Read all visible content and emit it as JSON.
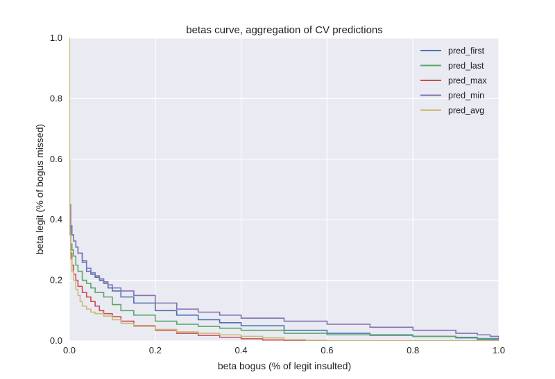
{
  "chart_data": {
    "type": "line",
    "title": "betas curve, aggregation of CV predictions",
    "xlabel": "beta bogus (% of legit insulted)",
    "ylabel": "beta legit (% of bogus missed)",
    "xlim": [
      0.0,
      1.0
    ],
    "ylim": [
      0.0,
      1.0
    ],
    "x_ticks": [
      "0.0",
      "0.2",
      "0.4",
      "0.6",
      "0.8",
      "1.0"
    ],
    "y_ticks": [
      "0.0",
      "0.2",
      "0.4",
      "0.6",
      "0.8",
      "1.0"
    ],
    "grid": true,
    "legend_position": "top-right",
    "background_color": "#eaeaf2",
    "series": [
      {
        "name": "pred_first",
        "color": "#4c72b0",
        "x": [
          0.0,
          0.003,
          0.006,
          0.01,
          0.015,
          0.02,
          0.03,
          0.04,
          0.05,
          0.06,
          0.07,
          0.08,
          0.09,
          0.1,
          0.12,
          0.15,
          0.2,
          0.25,
          0.3,
          0.35,
          0.4,
          0.5,
          0.6,
          0.7,
          0.8,
          0.9,
          0.95,
          1.0
        ],
        "y": [
          0.43,
          0.37,
          0.35,
          0.33,
          0.31,
          0.29,
          0.26,
          0.23,
          0.22,
          0.21,
          0.2,
          0.19,
          0.175,
          0.165,
          0.145,
          0.125,
          0.1,
          0.085,
          0.07,
          0.06,
          0.05,
          0.035,
          0.025,
          0.02,
          0.015,
          0.01,
          0.005,
          0.0
        ]
      },
      {
        "name": "pred_last",
        "color": "#55a868",
        "x": [
          0.0,
          0.003,
          0.006,
          0.01,
          0.015,
          0.02,
          0.03,
          0.04,
          0.05,
          0.06,
          0.08,
          0.1,
          0.12,
          0.15,
          0.2,
          0.25,
          0.3,
          0.35,
          0.4,
          0.5,
          0.6,
          0.7,
          0.8,
          0.9,
          0.95,
          1.0
        ],
        "y": [
          0.37,
          0.32,
          0.3,
          0.28,
          0.25,
          0.23,
          0.2,
          0.19,
          0.175,
          0.16,
          0.145,
          0.12,
          0.1,
          0.085,
          0.065,
          0.055,
          0.048,
          0.042,
          0.035,
          0.025,
          0.02,
          0.018,
          0.015,
          0.012,
          0.008,
          0.0
        ]
      },
      {
        "name": "pred_max",
        "color": "#c44e52",
        "x": [
          0.0,
          0.003,
          0.006,
          0.01,
          0.015,
          0.02,
          0.03,
          0.04,
          0.05,
          0.06,
          0.07,
          0.08,
          0.1,
          0.12,
          0.15,
          0.2,
          0.25,
          0.3,
          0.35,
          0.4,
          0.45,
          0.5,
          1.0
        ],
        "y": [
          0.35,
          0.29,
          0.25,
          0.22,
          0.2,
          0.18,
          0.16,
          0.145,
          0.13,
          0.115,
          0.1,
          0.09,
          0.08,
          0.065,
          0.05,
          0.035,
          0.025,
          0.018,
          0.012,
          0.007,
          0.003,
          0.0,
          0.0
        ]
      },
      {
        "name": "pred_min",
        "color": "#8172b2",
        "x": [
          0.0,
          0.003,
          0.006,
          0.01,
          0.015,
          0.02,
          0.03,
          0.04,
          0.05,
          0.06,
          0.07,
          0.08,
          0.09,
          0.1,
          0.12,
          0.15,
          0.2,
          0.25,
          0.3,
          0.35,
          0.4,
          0.5,
          0.6,
          0.7,
          0.8,
          0.9,
          0.95,
          0.98,
          1.0
        ],
        "y": [
          0.45,
          0.38,
          0.35,
          0.33,
          0.31,
          0.29,
          0.265,
          0.24,
          0.225,
          0.215,
          0.205,
          0.195,
          0.185,
          0.175,
          0.165,
          0.15,
          0.125,
          0.105,
          0.095,
          0.085,
          0.075,
          0.065,
          0.055,
          0.045,
          0.035,
          0.025,
          0.02,
          0.015,
          0.0
        ]
      },
      {
        "name": "pred_avg",
        "color": "#ccb974",
        "x": [
          0.0,
          0.0005,
          0.001,
          0.003,
          0.006,
          0.01,
          0.015,
          0.02,
          0.025,
          0.03,
          0.04,
          0.05,
          0.06,
          0.08,
          0.1,
          0.12,
          0.15,
          0.2,
          0.25,
          0.3,
          0.35,
          0.4,
          0.45,
          0.5,
          0.55,
          0.6,
          1.0
        ],
        "y": [
          1.0,
          0.6,
          0.35,
          0.27,
          0.23,
          0.2,
          0.17,
          0.15,
          0.13,
          0.115,
          0.105,
          0.095,
          0.09,
          0.082,
          0.07,
          0.058,
          0.048,
          0.038,
          0.03,
          0.025,
          0.02,
          0.015,
          0.01,
          0.005,
          0.002,
          0.0,
          0.0
        ]
      }
    ]
  }
}
